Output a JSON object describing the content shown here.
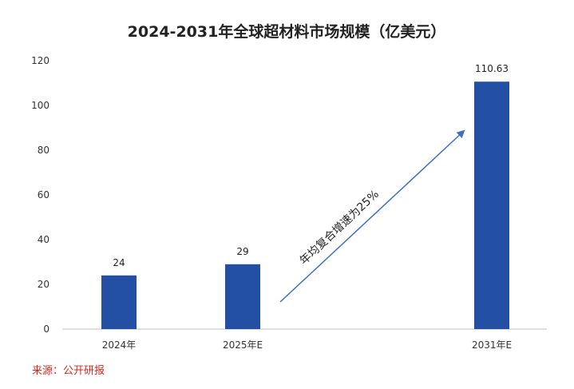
{
  "chart_data": {
    "type": "bar",
    "title": "2024-2031年全球超材料市场规模（亿美元）",
    "categories": [
      "2024年",
      "2025年E",
      "2031年E"
    ],
    "values": [
      24,
      29,
      110.63
    ],
    "value_labels": [
      "24",
      "29",
      "110.63"
    ],
    "ylim": [
      0,
      120
    ],
    "yticks": [
      0,
      20,
      40,
      60,
      80,
      100,
      120
    ],
    "grid": false,
    "annotation": "年均复合增速为25%",
    "bar_color": "#2350a5",
    "arrow_color": "#3a6fc0"
  },
  "source": "来源：公开研报"
}
